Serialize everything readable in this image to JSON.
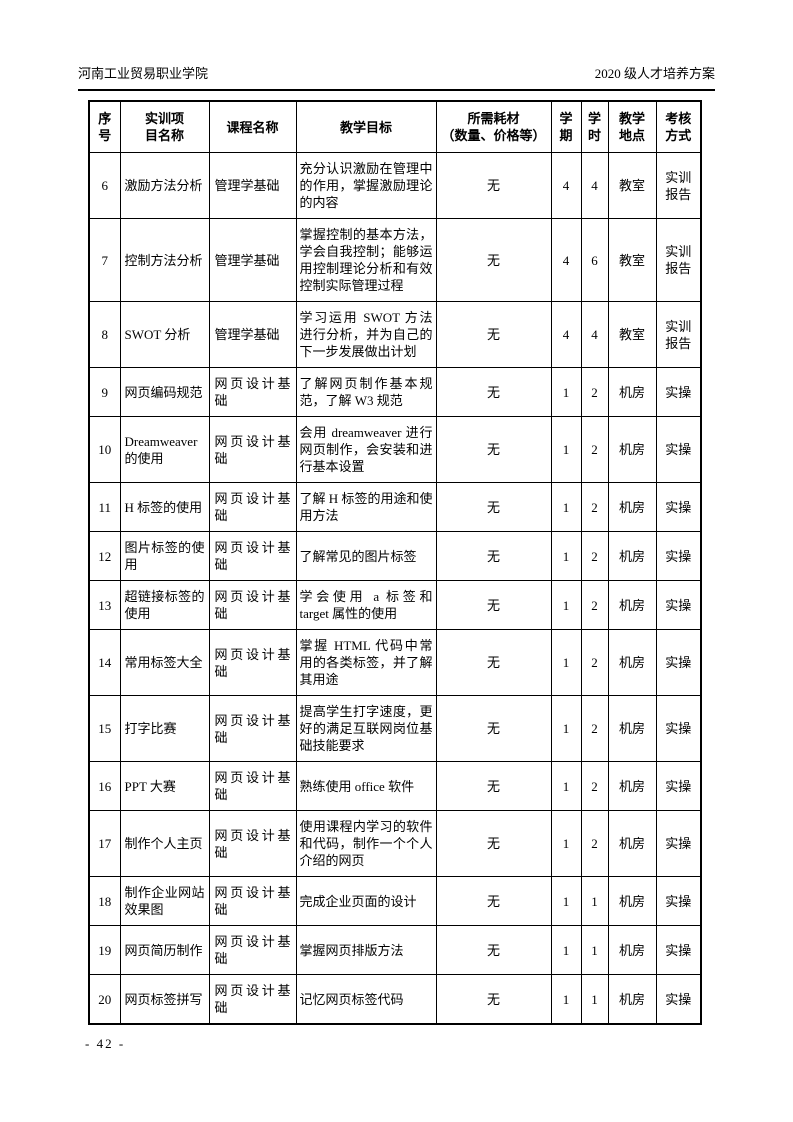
{
  "page": {
    "header_left": "河南工业贸易职业学院",
    "header_right": "2020 级人才培养方案",
    "page_number": "- 42 -"
  },
  "table": {
    "headers": {
      "num": "序\n号",
      "project": "实训项\n目名称",
      "course": "课程名称",
      "objective": "教学目标",
      "materials": "所需耗材\n（数量、价格等）",
      "semester": "学\n期",
      "hours": "学\n时",
      "location": "教学\n地点",
      "assessment": "考核\n方式"
    },
    "rows": [
      {
        "num": "6",
        "project": "激励方法分析",
        "course": "管理学基础",
        "objective": "充分认识激励在管理中的作用，掌握激励理论的内容",
        "materials": "无",
        "semester": "4",
        "hours": "4",
        "location": "教室",
        "assessment": "实训报告"
      },
      {
        "num": "7",
        "project": "控制方法分析",
        "course": "管理学基础",
        "objective": "掌握控制的基本方法，学会自我控制；能够运用控制理论分析和有效控制实际管理过程",
        "materials": "无",
        "semester": "4",
        "hours": "6",
        "location": "教室",
        "assessment": "实训报告"
      },
      {
        "num": "8",
        "project": "SWOT 分析",
        "course": "管理学基础",
        "objective": "学习运用 SWOT 方法进行分析，并为自己的下一步发展做出计划",
        "materials": "无",
        "semester": "4",
        "hours": "4",
        "location": "教室",
        "assessment": "实训报告"
      },
      {
        "num": "9",
        "project": "网页编码规范",
        "course": "网页设计基础",
        "objective": "了解网页制作基本规范，了解 W3 规范",
        "materials": "无",
        "semester": "1",
        "hours": "2",
        "location": "机房",
        "assessment": "实操"
      },
      {
        "num": "10",
        "project": "Dreamweaver 的使用",
        "course": "网页设计基础",
        "objective": "会用 dreamweaver 进行网页制作，会安装和进行基本设置",
        "materials": "无",
        "semester": "1",
        "hours": "2",
        "location": "机房",
        "assessment": "实操"
      },
      {
        "num": "11",
        "project": "H 标签的使用",
        "course": "网页设计基础",
        "objective": "了解 H 标签的用途和使用方法",
        "materials": "无",
        "semester": "1",
        "hours": "2",
        "location": "机房",
        "assessment": "实操"
      },
      {
        "num": "12",
        "project": "图片标签的使用",
        "course": "网页设计基础",
        "objective": "了解常见的图片标签",
        "materials": "无",
        "semester": "1",
        "hours": "2",
        "location": "机房",
        "assessment": "实操"
      },
      {
        "num": "13",
        "project": "超链接标签的使用",
        "course": "网页设计基础",
        "objective": "学会使用 a 标签和 target 属性的使用",
        "materials": "无",
        "semester": "1",
        "hours": "2",
        "location": "机房",
        "assessment": "实操"
      },
      {
        "num": "14",
        "project": "常用标签大全",
        "course": "网页设计基础",
        "objective": "掌握 HTML 代码中常用的各类标签，并了解其用途",
        "materials": "无",
        "semester": "1",
        "hours": "2",
        "location": "机房",
        "assessment": "实操"
      },
      {
        "num": "15",
        "project": "打字比赛",
        "course": "网页设计基础",
        "objective": "提高学生打字速度，更好的满足互联网岗位基础技能要求",
        "materials": "无",
        "semester": "1",
        "hours": "2",
        "location": "机房",
        "assessment": "实操"
      },
      {
        "num": "16",
        "project": "PPT 大赛",
        "course": "网页设计基础",
        "objective": "熟练使用 office 软件",
        "materials": "无",
        "semester": "1",
        "hours": "2",
        "location": "机房",
        "assessment": "实操"
      },
      {
        "num": "17",
        "project": "制作个人主页",
        "course": "网页设计基础",
        "objective": "使用课程内学习的软件和代码，制作一个个人介绍的网页",
        "materials": "无",
        "semester": "1",
        "hours": "2",
        "location": "机房",
        "assessment": "实操"
      },
      {
        "num": "18",
        "project": "制作企业网站效果图",
        "course": "网页设计基础",
        "objective": "完成企业页面的设计",
        "materials": "无",
        "semester": "1",
        "hours": "1",
        "location": "机房",
        "assessment": "实操"
      },
      {
        "num": "19",
        "project": "网页简历制作",
        "course": "网页设计基础",
        "objective": "掌握网页排版方法",
        "materials": "无",
        "semester": "1",
        "hours": "1",
        "location": "机房",
        "assessment": "实操"
      },
      {
        "num": "20",
        "project": "网页标签拼写",
        "course": "网页设计基础",
        "objective": "记忆网页标签代码",
        "materials": "无",
        "semester": "1",
        "hours": "1",
        "location": "机房",
        "assessment": "实操"
      }
    ]
  }
}
